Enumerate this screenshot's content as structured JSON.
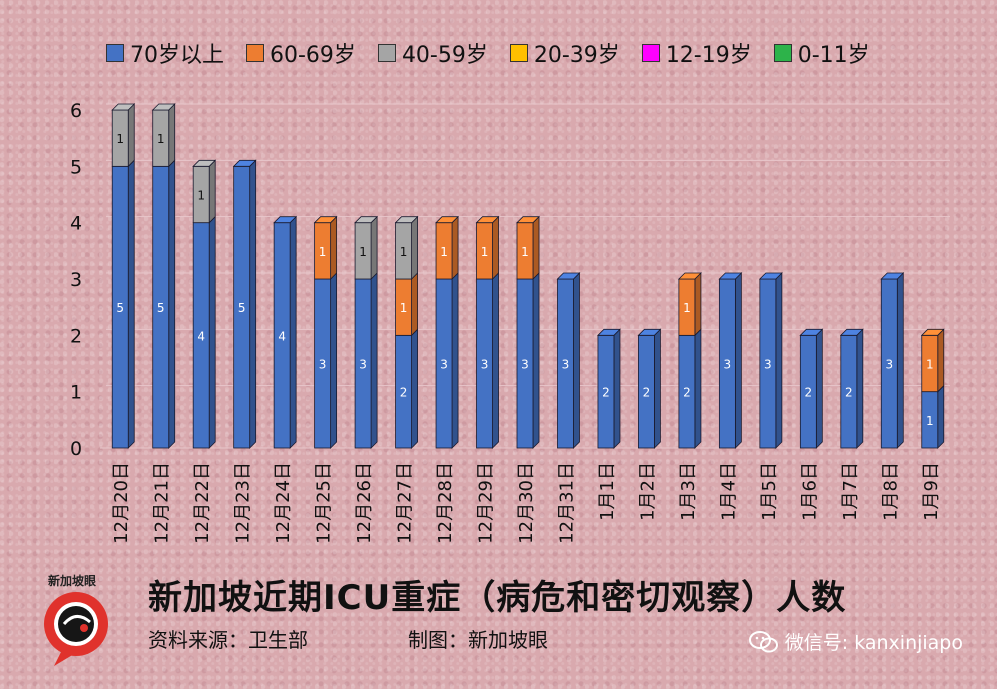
{
  "legend": [
    {
      "label": "70岁以上",
      "color": "#4472c4"
    },
    {
      "label": "60-69岁",
      "color": "#ed7d31"
    },
    {
      "label": "40-59岁",
      "color": "#a5a5a5"
    },
    {
      "label": "20-39岁",
      "color": "#ffc000"
    },
    {
      "label": "12-19岁",
      "color": "#ff00ff"
    },
    {
      "label": "0-11岁",
      "color": "#2db34a"
    }
  ],
  "chart_data": {
    "type": "bar",
    "stacked": true,
    "categories": [
      "12月20日",
      "12月21日",
      "12月22日",
      "12月23日",
      "12月24日",
      "12月25日",
      "12月26日",
      "12月27日",
      "12月28日",
      "12月29日",
      "12月30日",
      "12月31日",
      "1月1日",
      "1月2日",
      "1月3日",
      "1月4日",
      "1月5日",
      "1月6日",
      "1月7日",
      "1月8日",
      "1月9日"
    ],
    "series": [
      {
        "name": "70岁以上",
        "values": [
          5,
          5,
          4,
          5,
          4,
          3,
          3,
          2,
          3,
          3,
          3,
          3,
          2,
          2,
          2,
          3,
          3,
          2,
          2,
          3,
          1
        ]
      },
      {
        "name": "60-69岁",
        "values": [
          0,
          0,
          0,
          0,
          0,
          1,
          0,
          1,
          1,
          1,
          1,
          0,
          0,
          0,
          1,
          0,
          0,
          0,
          0,
          0,
          1
        ]
      },
      {
        "name": "40-59岁",
        "values": [
          1,
          1,
          1,
          0,
          0,
          0,
          1,
          1,
          0,
          0,
          0,
          0,
          0,
          0,
          0,
          0,
          0,
          0,
          0,
          0,
          0
        ]
      },
      {
        "name": "20-39岁",
        "values": [
          0,
          0,
          0,
          0,
          0,
          0,
          0,
          0,
          0,
          0,
          0,
          0,
          0,
          0,
          0,
          0,
          0,
          0,
          0,
          0,
          0
        ]
      },
      {
        "name": "12-19岁",
        "values": [
          0,
          0,
          0,
          0,
          0,
          0,
          0,
          0,
          0,
          0,
          0,
          0,
          0,
          0,
          0,
          0,
          0,
          0,
          0,
          0,
          0
        ]
      },
      {
        "name": "0-11岁",
        "values": [
          0,
          0,
          0,
          0,
          0,
          0,
          0,
          0,
          0,
          0,
          0,
          0,
          0,
          0,
          0,
          0,
          0,
          0,
          0,
          0,
          0
        ]
      }
    ],
    "ylim": [
      0,
      6
    ],
    "yticks": [
      "0",
      "1",
      "2",
      "3",
      "4",
      "5",
      "6"
    ],
    "grid": true,
    "legend_position": "top"
  },
  "footer": {
    "title": "新加坡近期ICU重症（病危和密切观察）人数",
    "source": "资料来源：卫生部",
    "credit": "制图：新加坡眼",
    "logo_text": "新加坡眼",
    "wechat": "微信号: kanxinjiapo"
  }
}
